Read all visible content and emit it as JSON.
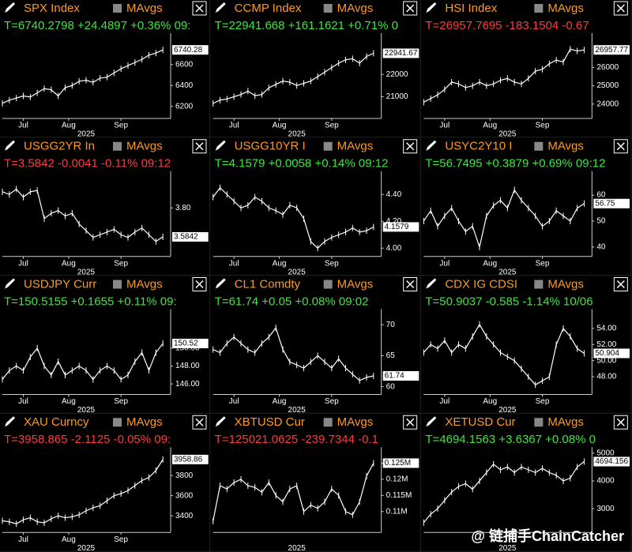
{
  "chart_data": [
    {
      "type": "line",
      "title": "SPX Index",
      "legend": "MAvgs",
      "stat": "T=6740.2798 +24.4897 +0.36% 09:",
      "stat_color": "#3ee63e",
      "title_color": "#ff9a1f",
      "color": "#ffffff",
      "xlabel": "2025",
      "values": [
        6230,
        6260,
        6280,
        6300,
        6290,
        6330,
        6370,
        6360,
        6300,
        6380,
        6400,
        6440,
        6450,
        6430,
        6470,
        6480,
        6520,
        6560,
        6590,
        6620,
        6650,
        6690,
        6710,
        6740.28
      ],
      "value_labels": [
        null,
        null,
        null,
        null,
        null,
        null,
        null,
        null,
        null,
        null,
        null,
        null,
        null,
        null,
        null,
        null,
        null,
        null,
        null,
        null,
        null,
        null,
        null,
        "6740.28"
      ],
      "xlim": [
        0,
        24
      ],
      "xticks": [
        {
          "value": 3,
          "label": "Jul"
        },
        {
          "value": 9.5,
          "label": "Aug"
        },
        {
          "value": 17,
          "label": "Sep"
        }
      ],
      "ylim": [
        6100,
        6870
      ],
      "yticks": [
        6200,
        6400,
        6600
      ]
    },
    {
      "type": "line",
      "title": "CCMP Index",
      "legend": "MAvgs",
      "stat": "T=22941.668 +161.1621 +0.71% 0",
      "stat_color": "#3ee63e",
      "title_color": "#ff9a1f",
      "color": "#ffffff",
      "xlabel": "2025",
      "values": [
        20700,
        20850,
        20900,
        21000,
        21100,
        21250,
        21050,
        21100,
        21400,
        21550,
        21700,
        21650,
        21500,
        21600,
        21700,
        21900,
        22100,
        22300,
        22500,
        22650,
        22700,
        22500,
        22800,
        22941.67
      ],
      "value_labels": [
        null,
        null,
        null,
        null,
        null,
        null,
        null,
        null,
        null,
        null,
        null,
        null,
        null,
        null,
        null,
        null,
        null,
        null,
        null,
        null,
        null,
        null,
        null,
        "22941.67"
      ],
      "xlim": [
        0,
        24
      ],
      "xticks": [
        {
          "value": 3,
          "label": "Jul"
        },
        {
          "value": 9.5,
          "label": "Aug"
        },
        {
          "value": 17,
          "label": "Sep"
        }
      ],
      "ylim": [
        20100,
        23700
      ],
      "yticks": [
        21000,
        22000
      ]
    },
    {
      "type": "line",
      "title": "HSI Index",
      "legend": "MAvgs",
      "stat": "T=26957.7695 -183.1504 -0.67",
      "stat_color": "#ff3b3b",
      "title_color": "#ff9a1f",
      "color": "#ffffff",
      "xlabel": "2025",
      "values": [
        24100,
        24300,
        24500,
        24800,
        25200,
        25100,
        24900,
        25000,
        25200,
        25000,
        25100,
        25300,
        25400,
        25200,
        25100,
        25400,
        25800,
        25900,
        26200,
        26400,
        26300,
        27000,
        26900,
        26957.77
      ],
      "value_labels": [
        null,
        null,
        null,
        null,
        null,
        null,
        null,
        null,
        null,
        null,
        null,
        null,
        null,
        null,
        null,
        null,
        null,
        null,
        null,
        null,
        null,
        null,
        null,
        "26957.77"
      ],
      "xlim": [
        0,
        24
      ],
      "xticks": [
        {
          "value": 3,
          "label": "Jul"
        },
        {
          "value": 9.5,
          "label": "Aug"
        },
        {
          "value": 17,
          "label": "Sep"
        }
      ],
      "ylim": [
        23300,
        27700
      ],
      "yticks": [
        24000,
        25000,
        26000
      ]
    },
    {
      "type": "line",
      "title": "USGG2YR In",
      "legend": "MAvgs",
      "stat": "T=3.5842 -0.0041 -0.11% 09:12",
      "stat_color": "#ff3b3b",
      "title_color": "#ff9a1f",
      "color": "#ffffff",
      "xlabel": "2025",
      "values": [
        3.92,
        3.9,
        3.94,
        3.88,
        3.92,
        3.93,
        3.72,
        3.76,
        3.78,
        3.74,
        3.76,
        3.68,
        3.63,
        3.58,
        3.6,
        3.62,
        3.64,
        3.6,
        3.58,
        3.62,
        3.65,
        3.6,
        3.55,
        3.5842
      ],
      "value_labels": [
        null,
        null,
        null,
        null,
        null,
        null,
        null,
        null,
        null,
        null,
        null,
        null,
        null,
        null,
        null,
        null,
        null,
        null,
        null,
        null,
        null,
        null,
        null,
        "3.5842"
      ],
      "xlim": [
        0,
        24
      ],
      "xticks": [
        {
          "value": 3,
          "label": "Jul"
        },
        {
          "value": 9.5,
          "label": "Aug"
        },
        {
          "value": 17,
          "label": "Sep"
        }
      ],
      "ylim": [
        3.45,
        4.05
      ],
      "yticks": [
        {
          "value": 3.8,
          "label": "3.80"
        }
      ]
    },
    {
      "type": "line",
      "title": "USGG10YR I",
      "legend": "MAvgs",
      "stat": "T=4.1579 +0.0058 +0.14% 09:12",
      "stat_color": "#3ee63e",
      "title_color": "#ff9a1f",
      "color": "#ffffff",
      "xlabel": "2025",
      "values": [
        4.38,
        4.45,
        4.4,
        4.35,
        4.3,
        4.32,
        4.38,
        4.35,
        4.3,
        4.28,
        4.25,
        4.32,
        4.3,
        4.22,
        4.05,
        4.0,
        4.05,
        4.08,
        4.1,
        4.12,
        4.15,
        4.12,
        4.13,
        4.1579
      ],
      "value_labels": [
        null,
        null,
        null,
        null,
        null,
        null,
        null,
        null,
        null,
        null,
        null,
        null,
        null,
        null,
        null,
        null,
        null,
        null,
        null,
        null,
        null,
        null,
        null,
        "4.1579"
      ],
      "xlim": [
        0,
        24
      ],
      "xticks": [
        {
          "value": 3,
          "label": "Jul"
        },
        {
          "value": 9.5,
          "label": "Aug"
        },
        {
          "value": 17,
          "label": "Sep"
        }
      ],
      "ylim": [
        3.95,
        4.55
      ],
      "yticks": [
        {
          "value": 4,
          "label": "4.00"
        },
        {
          "value": 4.2,
          "label": "4.20"
        },
        {
          "value": 4.4,
          "label": "4.40"
        }
      ]
    },
    {
      "type": "line",
      "title": "USYC2Y10 I",
      "legend": "MAvgs",
      "stat": "T=56.7495 +0.3879 +0.69% 09:12",
      "stat_color": "#3ee63e",
      "title_color": "#ff9a1f",
      "color": "#ffffff",
      "xlabel": "2025",
      "values": [
        50,
        54,
        48,
        52,
        55,
        50,
        46,
        48,
        40,
        52,
        56,
        58,
        55,
        62,
        58,
        55,
        52,
        48,
        50,
        54,
        52,
        50,
        55,
        56.75
      ],
      "value_labels": [
        null,
        null,
        null,
        null,
        null,
        null,
        null,
        null,
        null,
        null,
        null,
        null,
        null,
        null,
        null,
        null,
        null,
        null,
        null,
        null,
        null,
        null,
        null,
        "56.75"
      ],
      "xlim": [
        0,
        24
      ],
      "xticks": [
        {
          "value": 3,
          "label": "Jul"
        },
        {
          "value": 9.5,
          "label": "Aug"
        },
        {
          "value": 17,
          "label": "Sep"
        }
      ],
      "ylim": [
        37,
        68
      ],
      "yticks": [
        40,
        50,
        60
      ]
    },
    {
      "type": "line",
      "title": "USDJPY Curr",
      "legend": "MAvgs",
      "stat": "T=150.5155 +0.1655 +0.11% 09:",
      "stat_color": "#3ee63e",
      "title_color": "#ff9a1f",
      "color": "#ffffff",
      "xlabel": "2025",
      "values": [
        146.5,
        147.5,
        148,
        147.5,
        149,
        150,
        148,
        147,
        148.5,
        147,
        147.5,
        148,
        147.5,
        146.5,
        147.5,
        148,
        147.5,
        146.5,
        147,
        148.5,
        149.5,
        147.5,
        149.5,
        150.52
      ],
      "value_labels": [
        null,
        null,
        null,
        null,
        null,
        null,
        null,
        null,
        null,
        null,
        null,
        null,
        null,
        null,
        null,
        null,
        null,
        null,
        null,
        null,
        null,
        null,
        null,
        "150.52"
      ],
      "xlim": [
        0,
        24
      ],
      "xticks": [
        {
          "value": 3,
          "label": "Jul"
        },
        {
          "value": 9.5,
          "label": "Aug"
        },
        {
          "value": 17,
          "label": "Sep"
        }
      ],
      "ylim": [
        145,
        154
      ],
      "yticks": [
        {
          "value": 146,
          "label": "146.00"
        },
        {
          "value": 148,
          "label": "148.00"
        },
        {
          "value": 150,
          "label": "150.00"
        }
      ]
    },
    {
      "type": "line",
      "title": "CL1 Comdty",
      "legend": "MAvgs",
      "stat": "T=61.74 +0.05 +0.08% 09:02",
      "stat_color": "#3ee63e",
      "title_color": "#ff9a1f",
      "color": "#ffffff",
      "xlabel": "2025",
      "values": [
        66,
        65.5,
        67,
        68,
        67,
        66,
        65.5,
        67,
        68,
        69.5,
        66,
        64,
        63.5,
        63,
        64,
        65,
        64,
        63,
        64.5,
        63,
        62,
        61,
        61.5,
        61.74
      ],
      "value_labels": [
        null,
        null,
        null,
        null,
        null,
        null,
        null,
        null,
        null,
        null,
        null,
        null,
        null,
        null,
        null,
        null,
        null,
        null,
        null,
        null,
        null,
        null,
        null,
        "61.74"
      ],
      "xlim": [
        0,
        24
      ],
      "xticks": [
        {
          "value": 3,
          "label": "Jul"
        },
        {
          "value": 9.5,
          "label": "Aug"
        },
        {
          "value": 17,
          "label": "Sep"
        }
      ],
      "ylim": [
        59,
        72
      ],
      "yticks": [
        60,
        65,
        70
      ]
    },
    {
      "type": "line",
      "title": "CDX IG CDSI",
      "legend": "MAvgs",
      "stat": "T=50.9037 -0.585 -1.14% 10/06",
      "stat_color": "#3ee63e",
      "title_color": "#ff9a1f",
      "color": "#ffffff",
      "xlabel": "2025",
      "values": [
        51,
        52,
        51.5,
        52.5,
        51,
        52,
        51.5,
        53,
        54.5,
        53,
        52,
        51,
        50.5,
        50,
        49,
        48,
        47,
        47.5,
        48,
        52,
        54,
        53,
        51.5,
        50.904
      ],
      "value_labels": [
        null,
        null,
        null,
        null,
        null,
        null,
        null,
        null,
        null,
        null,
        null,
        null,
        null,
        null,
        null,
        null,
        null,
        null,
        null,
        null,
        null,
        null,
        null,
        "50.904"
      ],
      "xlim": [
        0,
        24
      ],
      "xticks": [
        {
          "value": 3,
          "label": "Jul"
        },
        {
          "value": 9.5,
          "label": "Aug"
        },
        {
          "value": 17,
          "label": "Sep"
        }
      ],
      "ylim": [
        46,
        56
      ],
      "yticks": [
        {
          "value": 48,
          "label": "48.00"
        },
        {
          "value": 50,
          "label": "50.00"
        },
        {
          "value": 52,
          "label": "52.00"
        },
        {
          "value": 54,
          "label": "54.00"
        }
      ]
    },
    {
      "type": "line",
      "title": "XAU Curncy",
      "legend": "MAvgs",
      "stat": "T=3958.865 -2.1125 -0.05% 09:",
      "stat_color": "#ff3b3b",
      "title_color": "#ff9a1f",
      "color": "#ffffff",
      "xlabel": "2025",
      "values": [
        3350,
        3340,
        3320,
        3360,
        3380,
        3340,
        3330,
        3370,
        3400,
        3380,
        3390,
        3410,
        3450,
        3480,
        3500,
        3550,
        3600,
        3620,
        3650,
        3700,
        3750,
        3780,
        3850,
        3958.86
      ],
      "value_labels": [
        null,
        null,
        null,
        null,
        null,
        null,
        null,
        null,
        null,
        null,
        null,
        null,
        null,
        null,
        null,
        null,
        null,
        null,
        null,
        null,
        null,
        null,
        null,
        "3958.86"
      ],
      "xlim": [
        0,
        24
      ],
      "xticks": [
        {
          "value": 3,
          "label": "Jul"
        },
        {
          "value": 9.5,
          "label": "Aug"
        },
        {
          "value": 17,
          "label": "Sep"
        }
      ],
      "ylim": [
        3250,
        4050
      ],
      "yticks": [
        3400,
        3600,
        3800
      ]
    },
    {
      "type": "line",
      "title": "XBTUSD Cur",
      "legend": "MAvgs",
      "stat": "T=125021.0625 -239.7344 -0.1",
      "stat_color": "#ff3b3b",
      "title_color": "#ff9a1f",
      "color": "#ffffff",
      "xlabel": "2025",
      "values": [
        107000,
        118000,
        117000,
        119000,
        120000,
        118000,
        117500,
        116000,
        119000,
        115000,
        113000,
        117000,
        118000,
        110000,
        112000,
        111000,
        113000,
        117000,
        115000,
        110000,
        109000,
        113000,
        121000,
        125021
      ],
      "value_labels": [
        null,
        null,
        null,
        null,
        null,
        null,
        null,
        null,
        null,
        null,
        null,
        null,
        null,
        null,
        null,
        null,
        null,
        null,
        null,
        null,
        null,
        null,
        null,
        "0.125M"
      ],
      "xlim": [
        0,
        24
      ],
      "ylim": [
        104000,
        129000
      ],
      "yticks": [
        {
          "value": 110000,
          "label": "0.11M"
        },
        {
          "value": 115000,
          "label": "0.115M"
        },
        {
          "value": 120000,
          "label": "0.12M"
        },
        {
          "value": 125000,
          "label": "0.125M"
        }
      ]
    },
    {
      "type": "line",
      "title": "XETUSD Cur",
      "legend": "MAvgs",
      "stat": "T=4694.1563 +3.6367 +0.08% 0",
      "stat_color": "#3ee63e",
      "title_color": "#ff9a1f",
      "color": "#ffffff",
      "xlabel": "2025",
      "values": [
        2500,
        2800,
        3000,
        3300,
        3600,
        3800,
        3900,
        3700,
        4000,
        4300,
        4600,
        4400,
        4500,
        4300,
        4500,
        4400,
        4300,
        4450,
        4300,
        4200,
        4000,
        4100,
        4500,
        4694.156
      ],
      "value_labels": [
        null,
        null,
        null,
        null,
        null,
        null,
        null,
        null,
        null,
        null,
        null,
        null,
        null,
        null,
        null,
        null,
        null,
        null,
        null,
        null,
        null,
        null,
        null,
        "4694.156"
      ],
      "xlim": [
        0,
        24
      ],
      "ylim": [
        2200,
        5100
      ],
      "yticks": [
        3000,
        4000,
        5000
      ]
    }
  ],
  "watermark": "@ 链捕手ChainCatcher"
}
